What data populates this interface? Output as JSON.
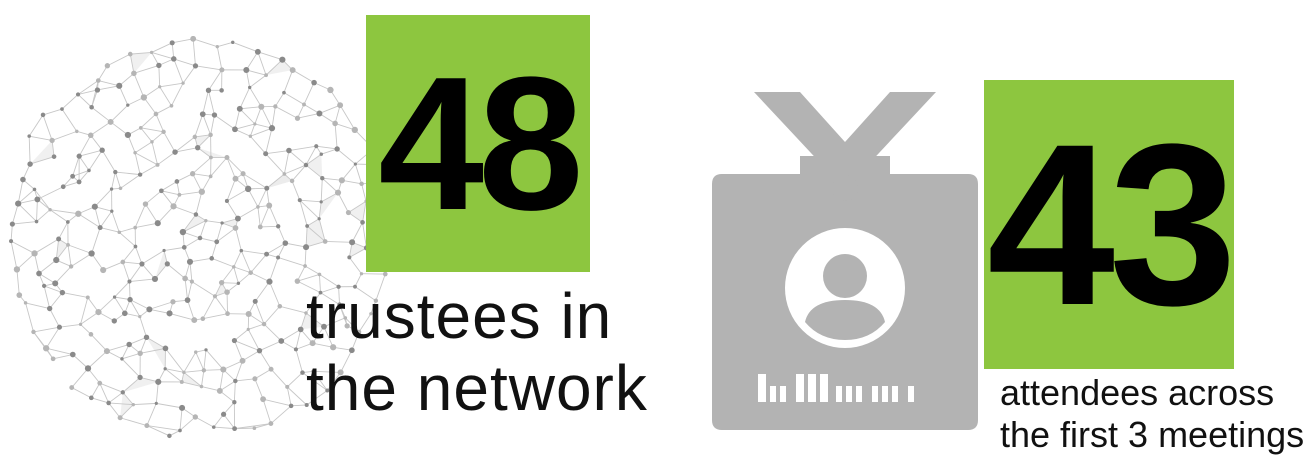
{
  "stats": [
    {
      "number": "48",
      "caption": "trustees in the network"
    },
    {
      "number": "43",
      "caption": "attendees across the first 3 meetings"
    }
  ],
  "icons": {
    "network": "network-globe-icon",
    "badge": "id-badge-icon"
  },
  "colors": {
    "accent": "#8dc63f",
    "icon_gray": "#b3b3b3",
    "text": "#111111"
  }
}
